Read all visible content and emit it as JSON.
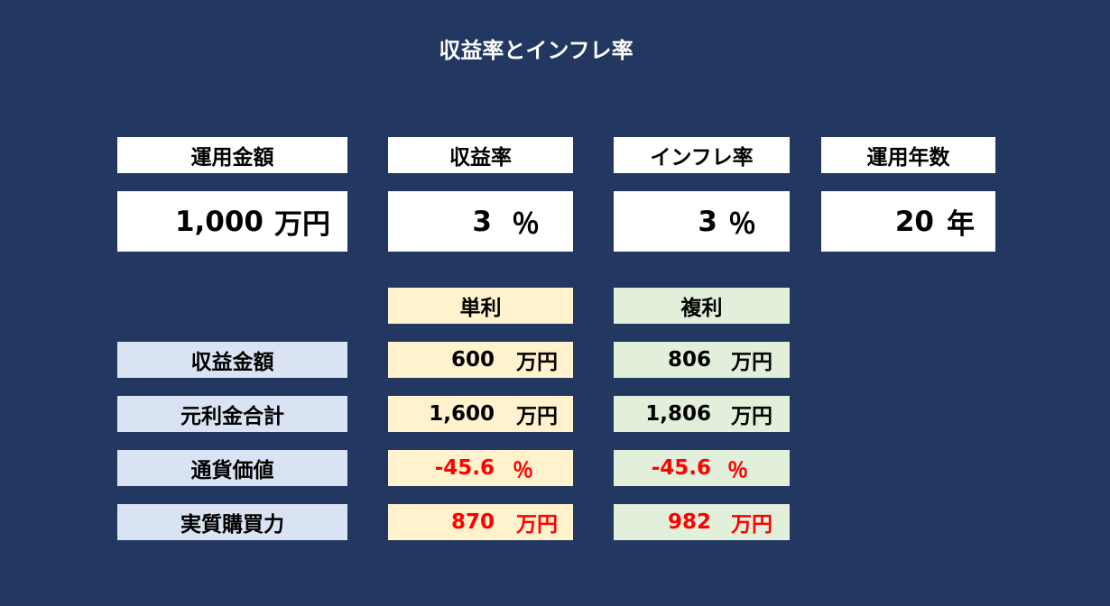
{
  "title": "収益率とインフレ率",
  "inputs": {
    "amount": {
      "label": "運用金額",
      "value": "1,000",
      "unit": "万円"
    },
    "return_rate": {
      "label": "収益率",
      "value": "3",
      "unit": "％"
    },
    "inflation": {
      "label": "インフレ率",
      "value": "3",
      "unit": "％"
    },
    "years": {
      "label": "運用年数",
      "value": "20",
      "unit": "年"
    }
  },
  "columns": {
    "simple": "単利",
    "compound": "複利"
  },
  "rows": [
    {
      "label": "収益金額",
      "simple": "600",
      "simple_unit": "万円",
      "compound": "806",
      "compound_unit": "万円"
    },
    {
      "label": "元利金合計",
      "simple": "1,600",
      "simple_unit": "万円",
      "compound": "1,806",
      "compound_unit": "万円"
    },
    {
      "label": "通貨価値",
      "simple": "-45.6",
      "simple_unit": "％",
      "compound": "-45.6",
      "compound_unit": "％"
    },
    {
      "label": "実質購買力",
      "simple": "870",
      "simple_unit": "万円",
      "compound": "982",
      "compound_unit": "万円"
    }
  ],
  "colors": {
    "background": "#223861",
    "simple_fill": "#fff2cc",
    "compound_fill": "#e2efda",
    "label_fill": "#dae3f3",
    "negative_text": "#ff0000"
  }
}
